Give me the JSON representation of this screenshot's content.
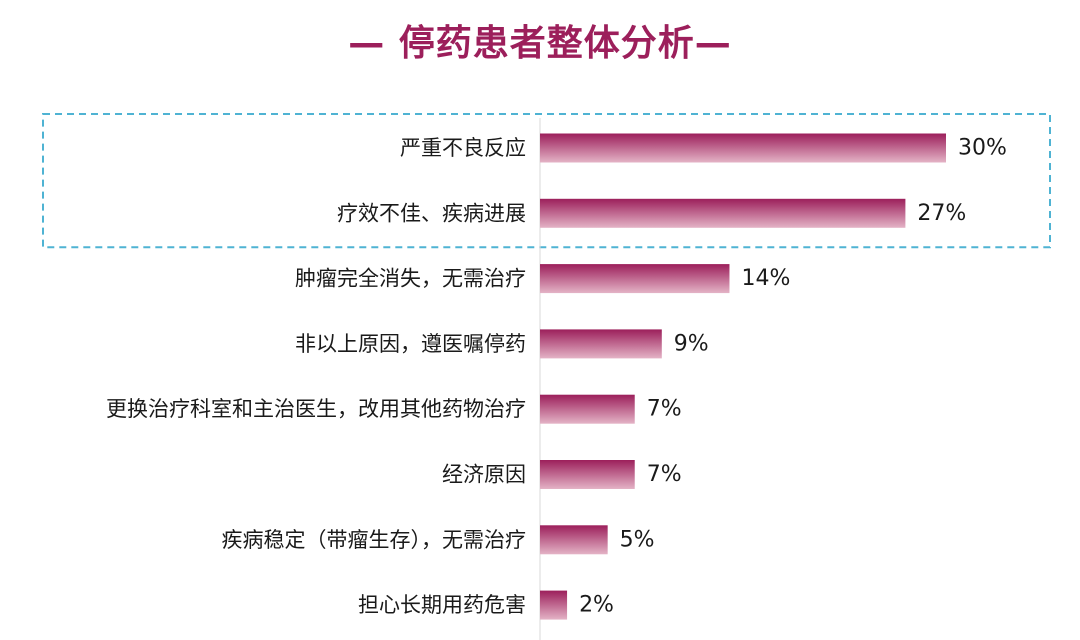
{
  "title": "— 停药患者整体分析—",
  "colors": {
    "title": "#9c1f5b",
    "bar_top": "#9c1f5b",
    "bar_bottom": "#e4b3c6",
    "highlight_box": "#4fb3d3"
  },
  "chart_data": {
    "type": "bar",
    "orientation": "horizontal",
    "categories": [
      "严重不良反应",
      "疗效不佳、疾病进展",
      "肿瘤完全消失，无需治疗",
      "非以上原因，遵医嘱停药",
      "更换治疗科室和主治医生，改用其他药物治疗",
      "经济原因",
      "疾病稳定（带瘤生存），无需治疗",
      "担心长期用药危害"
    ],
    "values": [
      30,
      27,
      14,
      9,
      7,
      7,
      5,
      2
    ],
    "value_labels": [
      "30%",
      "27%",
      "14%",
      "9%",
      "7%",
      "7%",
      "5%",
      "2%"
    ],
    "unit": "%",
    "xlim": [
      0,
      30
    ],
    "grid": false,
    "legend": "none",
    "highlighted_categories": [
      0,
      1
    ]
  }
}
